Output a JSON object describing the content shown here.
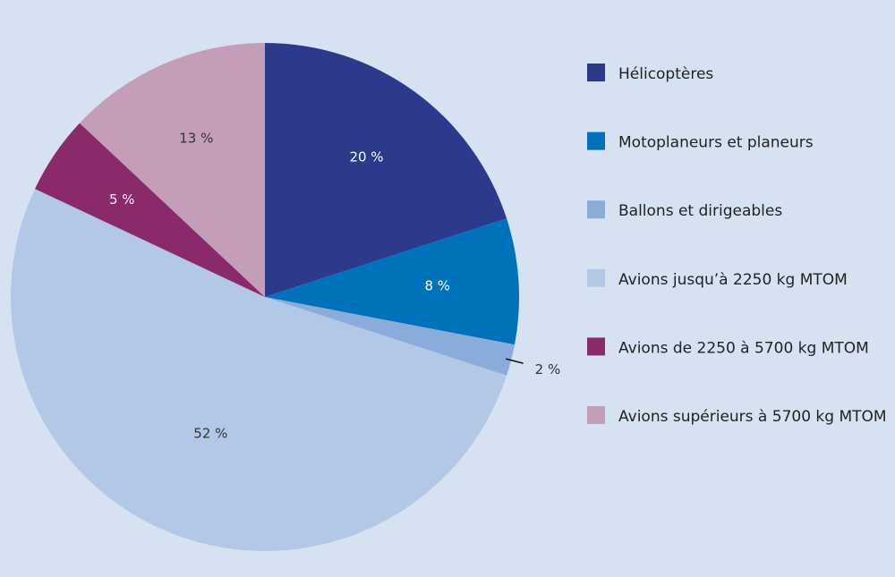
{
  "chart_data": {
    "type": "pie",
    "categories": [
      "Hélicoptères",
      "Motoplaneurs et planeurs",
      "Ballons et dirigeables",
      "Avions jusqu’à 2250 kg MTOM",
      "Avions de 2250 à 5700 kg MTOM",
      "Avions supérieurs à 5700 kg MTOM"
    ],
    "values": [
      20,
      8,
      2,
      52,
      5,
      13
    ],
    "value_labels": [
      "20 %",
      "8 %",
      "2 %",
      "52 %",
      "5 %",
      "13 %"
    ],
    "colors": [
      "#2d3a8c",
      "#0072bb",
      "#8aacdb",
      "#b3c8e6",
      "#8b2a6a",
      "#c49db8"
    ],
    "legend": "right"
  }
}
